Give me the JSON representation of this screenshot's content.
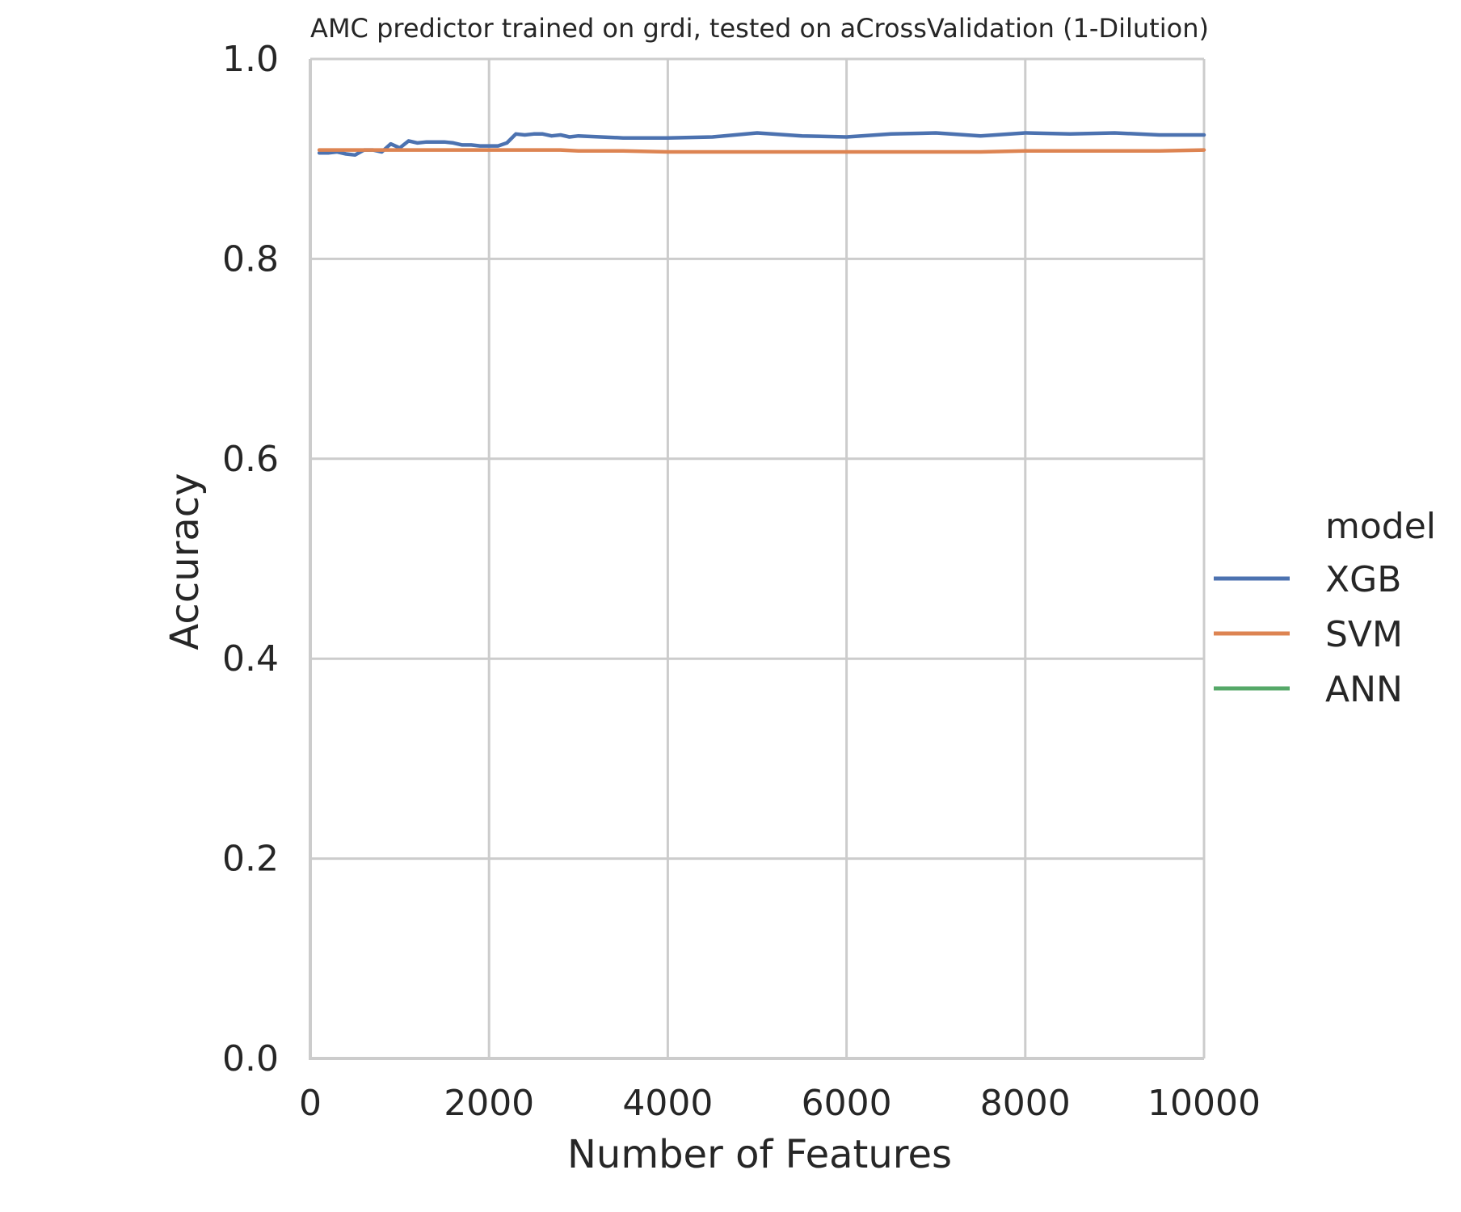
{
  "chart_data": {
    "type": "line",
    "title": "AMC predictor trained on grdi, tested on aCrossValidation (1-Dilution)",
    "xlabel": "Number of Features",
    "ylabel": "Accuracy",
    "xlim": [
      0,
      10000
    ],
    "ylim": [
      0.0,
      1.0
    ],
    "xticks": [
      "0",
      "2000",
      "4000",
      "6000",
      "8000",
      "10000"
    ],
    "yticks": [
      "0.0",
      "0.2",
      "0.4",
      "0.6",
      "0.8",
      "1.0"
    ],
    "grid": true,
    "legend": {
      "title": "model",
      "placement": "right"
    },
    "series": [
      {
        "name": "XGB",
        "color": "#4c72b0",
        "x": [
          100,
          200,
          300,
          400,
          500,
          600,
          700,
          800,
          900,
          1000,
          1100,
          1200,
          1300,
          1400,
          1500,
          1600,
          1700,
          1800,
          1900,
          2000,
          2100,
          2200,
          2300,
          2400,
          2500,
          2600,
          2700,
          2800,
          2900,
          3000,
          3500,
          4000,
          4500,
          5000,
          5500,
          6000,
          6500,
          7000,
          7500,
          8000,
          8500,
          9000,
          9500,
          10000
        ],
        "values": [
          0.906,
          0.906,
          0.907,
          0.905,
          0.904,
          0.909,
          0.909,
          0.907,
          0.915,
          0.911,
          0.918,
          0.916,
          0.917,
          0.917,
          0.917,
          0.916,
          0.914,
          0.914,
          0.913,
          0.913,
          0.913,
          0.916,
          0.925,
          0.924,
          0.925,
          0.925,
          0.923,
          0.924,
          0.922,
          0.923,
          0.921,
          0.921,
          0.922,
          0.926,
          0.923,
          0.922,
          0.925,
          0.926,
          0.923,
          0.926,
          0.925,
          0.926,
          0.924,
          0.924
        ]
      },
      {
        "name": "SVM",
        "color": "#dd8452",
        "x": [
          100,
          500,
          1000,
          2000,
          2800,
          3000,
          3500,
          4000,
          5000,
          6000,
          7000,
          7500,
          8000,
          9000,
          9500,
          10000
        ],
        "values": [
          0.909,
          0.909,
          0.909,
          0.909,
          0.909,
          0.908,
          0.908,
          0.907,
          0.907,
          0.907,
          0.907,
          0.907,
          0.908,
          0.908,
          0.908,
          0.909
        ]
      },
      {
        "name": "ANN",
        "color": "#55a868",
        "x": [],
        "values": []
      }
    ]
  }
}
